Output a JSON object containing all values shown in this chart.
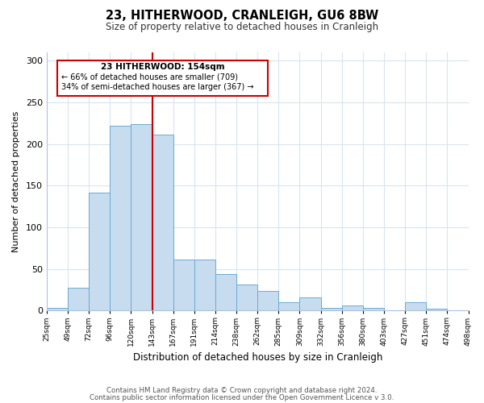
{
  "title": "23, HITHERWOOD, CRANLEIGH, GU6 8BW",
  "subtitle": "Size of property relative to detached houses in Cranleigh",
  "xlabel": "Distribution of detached houses by size in Cranleigh",
  "ylabel": "Number of detached properties",
  "footer_line1": "Contains HM Land Registry data © Crown copyright and database right 2024.",
  "footer_line2": "Contains public sector information licensed under the Open Government Licence v 3.0.",
  "bin_labels": [
    "25sqm",
    "49sqm",
    "72sqm",
    "96sqm",
    "120sqm",
    "143sqm",
    "167sqm",
    "191sqm",
    "214sqm",
    "238sqm",
    "262sqm",
    "285sqm",
    "309sqm",
    "332sqm",
    "356sqm",
    "380sqm",
    "403sqm",
    "427sqm",
    "451sqm",
    "474sqm",
    "498sqm"
  ],
  "bar_heights": [
    3,
    27,
    142,
    222,
    224,
    211,
    61,
    61,
    44,
    31,
    24,
    10,
    16,
    3,
    6,
    3,
    0,
    10,
    2,
    0
  ],
  "bar_color": "#c8dcf0",
  "bar_edge_color": "#6aaad4",
  "vline_x": 5,
  "vline_color": "#cc0000",
  "annotation_title": "23 HITHERWOOD: 154sqm",
  "annotation_line1": "← 66% of detached houses are smaller (709)",
  "annotation_line2": "34% of semi-detached houses are larger (367) →",
  "annotation_box_color": "#cc0000",
  "annotation_bg_color": "#ffffff",
  "ylim": [
    0,
    310
  ],
  "yticks": [
    0,
    50,
    100,
    150,
    200,
    250,
    300
  ],
  "grid_color": "#d8e4f0",
  "spine_color": "#b0c4d8"
}
